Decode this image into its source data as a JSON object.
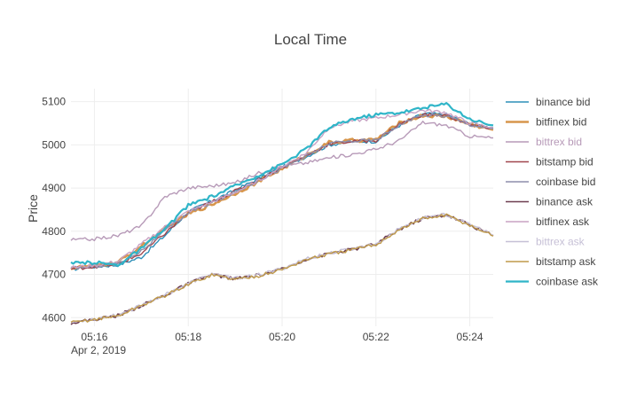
{
  "chart_data": {
    "type": "line",
    "title": "Local Time",
    "xlabel": "",
    "ylabel": "Price",
    "x_date_label": "Apr 2, 2019",
    "x_tick_labels": [
      "05:16",
      "05:18",
      "05:20",
      "05:22",
      "05:24"
    ],
    "x_tick_values": [
      16,
      18,
      20,
      22,
      24
    ],
    "y_tick_labels": [
      "4600",
      "4700",
      "4800",
      "4900",
      "5000",
      "5100"
    ],
    "y_tick_values": [
      4600,
      4700,
      4800,
      4900,
      5000,
      5100
    ],
    "xlim": [
      "05:15:30",
      "05:24:30"
    ],
    "ylim": [
      4580,
      5130
    ],
    "grid": true,
    "legend_position": "right",
    "x": [
      "05:15:30",
      "05:16:00",
      "05:16:30",
      "05:17:00",
      "05:17:30",
      "05:18:00",
      "05:18:30",
      "05:19:00",
      "05:19:30",
      "05:20:00",
      "05:20:30",
      "05:21:00",
      "05:21:30",
      "05:22:00",
      "05:22:30",
      "05:23:00",
      "05:23:30",
      "05:24:00",
      "05:24:30"
    ],
    "series": [
      {
        "name": "binance bid",
        "color": "#2d8fb8",
        "width": 1.4,
        "values": [
          4712,
          4718,
          4722,
          4740,
          4790,
          4845,
          4870,
          4895,
          4922,
          4948,
          4972,
          5000,
          5008,
          5008,
          5045,
          5072,
          5070,
          5048,
          5040
        ]
      },
      {
        "name": "bitfinex bid",
        "color": "#d7964c",
        "width": 2.6,
        "values": [
          4715,
          4720,
          4728,
          4765,
          4805,
          4840,
          4862,
          4888,
          4915,
          4945,
          4975,
          5005,
          5010,
          5012,
          5050,
          5068,
          5066,
          5048,
          5035
        ]
      },
      {
        "name": "bittrex bid",
        "color": "#b79ab8",
        "width": 1.4,
        "values": [
          4780,
          4782,
          4790,
          4812,
          4880,
          4900,
          4905,
          4912,
          4935,
          4950,
          4958,
          4970,
          4978,
          4990,
          5010,
          5052,
          5045,
          5020,
          5016
        ]
      },
      {
        "name": "bitstamp bid",
        "color": "#a0464e",
        "width": 1.4,
        "values": [
          4713,
          4718,
          4724,
          4748,
          4795,
          4842,
          4868,
          4893,
          4920,
          4947,
          4974,
          5002,
          5008,
          5010,
          5048,
          5070,
          5068,
          5046,
          5038
        ]
      },
      {
        "name": "coinbase bid",
        "color": "#8d8eab",
        "width": 1.4,
        "values": [
          4714,
          4719,
          4726,
          4755,
          4800,
          4843,
          4866,
          4891,
          4918,
          4946,
          4973,
          5003,
          5009,
          5011,
          5047,
          5069,
          5067,
          5047,
          5037
        ]
      },
      {
        "name": "binance ask",
        "color": "#6e3e50",
        "width": 1.6,
        "values": [
          4588,
          4596,
          4605,
          4628,
          4652,
          4678,
          4700,
          4690,
          4698,
          4712,
          4735,
          4748,
          4758,
          4770,
          4805,
          4830,
          4838,
          4815,
          4790
        ]
      },
      {
        "name": "bitfinex ask",
        "color": "#c8a2c4",
        "width": 1.4,
        "values": [
          4716,
          4721,
          4730,
          4770,
          4810,
          4846,
          4867,
          4890,
          4917,
          4950,
          4980,
          5040,
          5055,
          5062,
          5070,
          5080,
          5075,
          5050,
          5040
        ]
      },
      {
        "name": "bittrex ask",
        "color": "#c6c0d6",
        "width": 1.4,
        "values": [
          4589,
          4597,
          4606,
          4629,
          4653,
          4679,
          4701,
          4691,
          4699,
          4713,
          4736,
          4749,
          4759,
          4771,
          4806,
          4831,
          4839,
          4816,
          4791
        ]
      },
      {
        "name": "bitstamp ask",
        "color": "#bf9a4a",
        "width": 1.4,
        "values": [
          4588,
          4596,
          4604,
          4628,
          4651,
          4677,
          4699,
          4689,
          4697,
          4711,
          4734,
          4747,
          4757,
          4769,
          4804,
          4829,
          4837,
          4814,
          4789
        ]
      },
      {
        "name": "coinbase ask",
        "color": "#2fb5c8",
        "width": 2.2,
        "values": [
          4725,
          4728,
          4722,
          4760,
          4805,
          4860,
          4880,
          4905,
          4930,
          4955,
          4990,
          5040,
          5060,
          5070,
          5075,
          5085,
          5095,
          5060,
          5045
        ]
      }
    ]
  }
}
